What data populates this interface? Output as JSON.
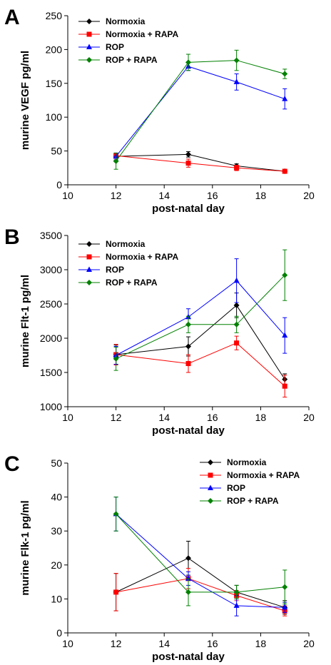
{
  "figure": {
    "panel_letters": [
      "A",
      "B",
      "C"
    ]
  },
  "colors": {
    "Normoxia": "#000000",
    "Normoxia + RAPA": "#ff0000",
    "ROP": "#0000ff",
    "ROP + RAPA": "#008000"
  },
  "chart_data": [
    {
      "type": "line",
      "panel": "A",
      "xlabel": "post-natal day",
      "ylabel": "murine VEGF pg/ml",
      "xlim": [
        10,
        20
      ],
      "ylim": [
        0,
        250
      ],
      "xticks": [
        10,
        12,
        14,
        16,
        18,
        20
      ],
      "yticks": [
        0,
        50,
        100,
        150,
        200,
        250
      ],
      "legend_position": "top-left",
      "x": [
        12,
        15,
        17,
        19
      ],
      "series": [
        {
          "name": "Normoxia",
          "marker": "diamond",
          "values": [
            42,
            45,
            28,
            20
          ],
          "errors": [
            3,
            4,
            3,
            2
          ]
        },
        {
          "name": "Normoxia + RAPA",
          "marker": "square",
          "values": [
            43,
            32,
            25,
            20
          ],
          "errors": [
            4,
            6,
            4,
            2
          ]
        },
        {
          "name": "ROP",
          "marker": "triangle",
          "values": [
            42,
            175,
            152,
            127
          ],
          "errors": [
            5,
            6,
            12,
            15
          ]
        },
        {
          "name": "ROP + RAPA",
          "marker": "diamond",
          "values": [
            35,
            181,
            184,
            164
          ],
          "errors": [
            12,
            12,
            15,
            7
          ]
        }
      ]
    },
    {
      "type": "line",
      "panel": "B",
      "xlabel": "post-natal day",
      "ylabel": "murine Flt-1 pg/ml",
      "xlim": [
        10,
        20
      ],
      "ylim": [
        1000,
        3500
      ],
      "xticks": [
        10,
        12,
        14,
        16,
        18,
        20
      ],
      "yticks": [
        1000,
        1500,
        2000,
        2500,
        3000,
        3500
      ],
      "legend_position": "top-left",
      "x": [
        12,
        15,
        17,
        19
      ],
      "series": [
        {
          "name": "Normoxia",
          "marker": "diamond",
          "values": [
            1760,
            1880,
            2480,
            1400
          ],
          "errors": [
            140,
            140,
            180,
            80
          ]
        },
        {
          "name": "Normoxia + RAPA",
          "marker": "square",
          "values": [
            1760,
            1630,
            1930,
            1300
          ],
          "errors": [
            150,
            130,
            100,
            160
          ]
        },
        {
          "name": "ROP",
          "marker": "triangle",
          "values": [
            1750,
            2310,
            2840,
            2040
          ],
          "errors": [
            130,
            120,
            320,
            260
          ]
        },
        {
          "name": "ROP + RAPA",
          "marker": "diamond",
          "values": [
            1700,
            2200,
            2200,
            2920
          ],
          "errors": [
            170,
            120,
            120,
            370
          ]
        }
      ]
    },
    {
      "type": "line",
      "panel": "C",
      "xlabel": "post-natal day",
      "ylabel": "murine Flk-1 pg/ml",
      "xlim": [
        10,
        20
      ],
      "ylim": [
        0,
        50
      ],
      "xticks": [
        10,
        12,
        14,
        16,
        18,
        20
      ],
      "yticks": [
        0,
        10,
        20,
        30,
        40,
        50
      ],
      "legend_position": "top-right",
      "x": [
        12,
        15,
        17,
        19
      ],
      "series": [
        {
          "name": "Normoxia",
          "marker": "diamond",
          "values": [
            12,
            22,
            12,
            7.5
          ],
          "errors": [
            5.5,
            5,
            2,
            2
          ]
        },
        {
          "name": "Normoxia + RAPA",
          "marker": "square",
          "values": [
            12,
            16,
            11,
            6.5
          ],
          "errors": [
            5.5,
            3,
            1.5,
            1.5
          ]
        },
        {
          "name": "ROP",
          "marker": "triangle",
          "values": [
            35,
            16,
            8,
            7.5
          ],
          "errors": [
            5,
            2,
            3,
            1.5
          ]
        },
        {
          "name": "ROP + RAPA",
          "marker": "diamond",
          "values": [
            35,
            12,
            12,
            13.5
          ],
          "errors": [
            5,
            4,
            2,
            5
          ]
        }
      ]
    }
  ]
}
